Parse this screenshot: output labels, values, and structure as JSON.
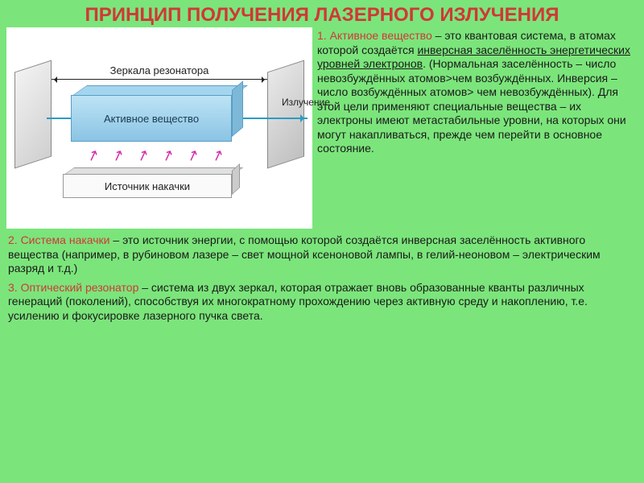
{
  "title": "ПРИНЦИП ПОЛУЧЕНИЯ ЛАЗЕРНОГО ИЗЛУЧЕНИЯ",
  "diagram": {
    "resonator_label": "Зеркала резонатора",
    "active_medium_label": "Активное вещество",
    "emission_label": "Излучение",
    "pump_label": "Источник накачки",
    "colors": {
      "active_medium": "#8ac4e4",
      "beam": "#2a9cc4",
      "pump_arrows": "#d42aa8",
      "mirror": "#d0d0d0",
      "bg": "#ffffff"
    }
  },
  "para1": {
    "term": "1. Активное вещество",
    "lead": " – это квантовая система, в атомах которой создаётся ",
    "underline": "инверсная заселённость энергетических уровней электронов",
    "rest": ". (Нормальная заселённость – число невозбуждённых атомов>чем возбуждённых. Инверсия – число возбуждённых атомов> чем невозбуждённых). Для этой цели применяют специальные вещества – их электроны имеют метастабильные уровни, на которых они могут накапливаться, прежде чем перейти в основное состояние."
  },
  "para2": {
    "term": "2. Система накачки",
    "rest": " – это источник энергии, с помощью которой создаётся инверсная заселённость активного вещества (например, в рубиновом лазере – свет мощной  ксеноновой лампы,  в гелий-неоновом – электрическим разряд и т.д.)"
  },
  "para3": {
    "term": "3. Оптический резонатор",
    "rest": " – система из двух зеркал, которая отражает вновь образованные кванты различных генераций (поколений), способствуя их многократному прохождению через активную среду и накоплению, т.е. усилению и фокусировке лазерного пучка света."
  },
  "slide_bg": "#7be57b"
}
